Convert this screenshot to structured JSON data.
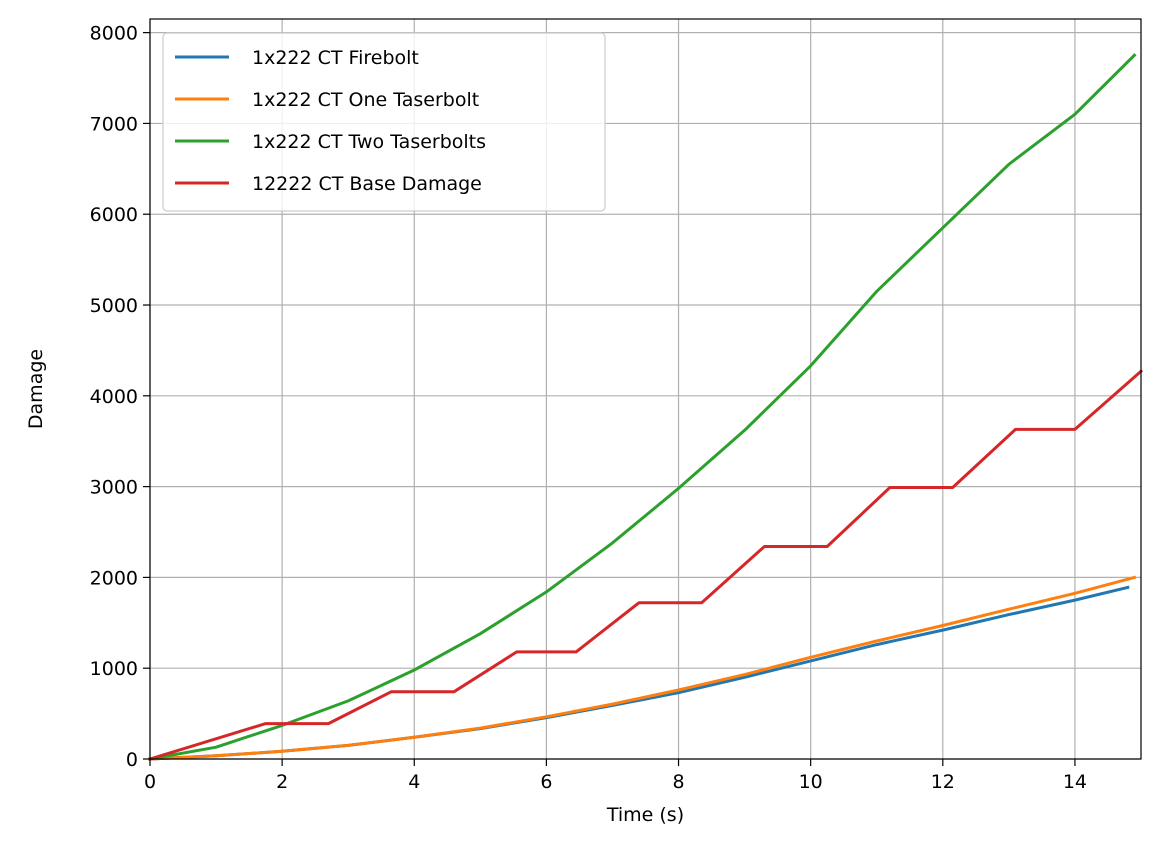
{
  "chart_data": {
    "type": "line",
    "title": "",
    "xlabel": "Time (s)",
    "ylabel": "Damage",
    "xlim": [
      0,
      15
    ],
    "ylim": [
      0,
      8150
    ],
    "xticks": [
      0,
      2,
      4,
      6,
      8,
      10,
      12,
      14
    ],
    "yticks": [
      0,
      1000,
      2000,
      3000,
      4000,
      5000,
      6000,
      7000,
      8000
    ],
    "grid": true,
    "legend_position": "top-left",
    "series": [
      {
        "name": "1x222 CT Firebolt",
        "color": "#1f77b4",
        "x": [
          0,
          1,
          2,
          3,
          4,
          5,
          6,
          7,
          8,
          9,
          10,
          11,
          12,
          13,
          14,
          14.8
        ],
        "y": [
          0,
          35,
          85,
          150,
          240,
          335,
          455,
          590,
          730,
          900,
          1080,
          1260,
          1420,
          1590,
          1750,
          1890
        ]
      },
      {
        "name": "1x222 CT One Taserbolt",
        "color": "#ff7f0e",
        "x": [
          0,
          1,
          2,
          3,
          4,
          5,
          6,
          7,
          8,
          9,
          10,
          11,
          12,
          13,
          14,
          14.9
        ],
        "y": [
          0,
          35,
          85,
          150,
          240,
          340,
          465,
          605,
          760,
          930,
          1120,
          1300,
          1470,
          1650,
          1825,
          2000
        ]
      },
      {
        "name": "1x222 CT Two Taserbolts",
        "color": "#2ca02c",
        "x": [
          0,
          1,
          2,
          3,
          4,
          5,
          6,
          7,
          8,
          9,
          10,
          11,
          12,
          13,
          14,
          14.9
        ],
        "y": [
          0,
          130,
          370,
          640,
          980,
          1380,
          1840,
          2380,
          2980,
          3620,
          4330,
          5150,
          5850,
          6550,
          7100,
          7750
        ]
      },
      {
        "name": "12222 CT Base Damage",
        "color": "#d62728",
        "x": [
          0,
          1.75,
          2.7,
          3.65,
          4.6,
          5.55,
          6.45,
          7.4,
          8.35,
          9.3,
          10.25,
          11.2,
          12.15,
          13.1,
          14.0,
          15.0
        ],
        "y": [
          0,
          390,
          390,
          740,
          740,
          1180,
          1180,
          1720,
          1720,
          2340,
          2340,
          2990,
          2990,
          3630,
          3630,
          4270
        ]
      }
    ]
  }
}
